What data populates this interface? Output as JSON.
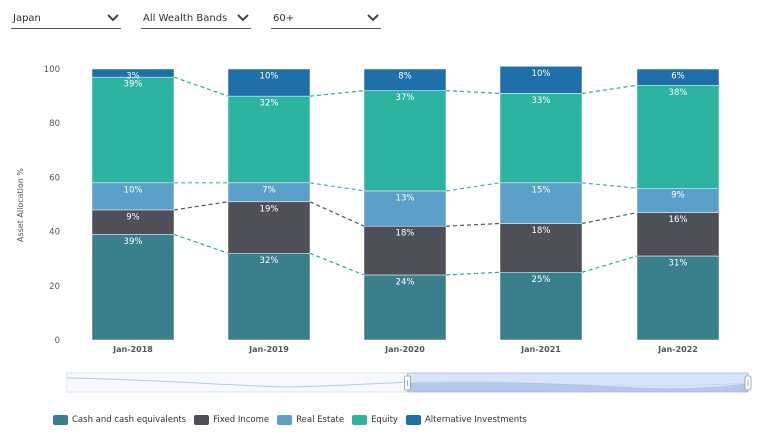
{
  "filters": {
    "country": {
      "value": "Japan",
      "icon": "chevron-down-icon"
    },
    "wealth_band": {
      "value": "All Wealth Bands",
      "icon": "chevron-down-icon"
    },
    "age": {
      "value": "60+",
      "icon": "chevron-down-icon"
    }
  },
  "chart_data": {
    "type": "bar",
    "stacked": true,
    "title": "",
    "xlabel": "",
    "ylabel": "Asset Allocation %",
    "ylim": [
      0,
      100
    ],
    "yticks": [
      0,
      20,
      40,
      60,
      80,
      100
    ],
    "grid": false,
    "legend_position": "bottom-left",
    "categories": [
      "Jan-2018",
      "Jan-2019",
      "Jan-2020",
      "Jan-2021",
      "Jan-2022"
    ],
    "series": [
      {
        "name": "Cash and cash equivalents",
        "color": "#3a7f8c",
        "values": [
          39,
          32,
          24,
          25,
          31
        ],
        "labels": [
          "39%",
          "32%",
          "24%",
          "25%",
          "31%"
        ],
        "connector_color": "#2fa8a8"
      },
      {
        "name": "Fixed Income",
        "color": "#4f4f57",
        "values": [
          9,
          19,
          18,
          18,
          16
        ],
        "labels": [
          "9%",
          "19%",
          "18%",
          "18%",
          "16%"
        ],
        "connector_color": "#555555"
      },
      {
        "name": "Real Estate",
        "color": "#5aa0c8",
        "values": [
          10,
          7,
          13,
          15,
          9
        ],
        "labels": [
          "10%",
          "7%",
          "13%",
          "15%",
          "9%"
        ],
        "connector_color": "#5aa0c8"
      },
      {
        "name": "Equity",
        "color": "#2db4a0",
        "values": [
          39,
          32,
          37,
          33,
          38
        ],
        "labels": [
          "39%",
          "32%",
          "37%",
          "33%",
          "38%"
        ],
        "connector_color": "#2fa8a8"
      },
      {
        "name": "Alternative Investments",
        "color": "#1f6fa8",
        "values": [
          3,
          10,
          8,
          10,
          6
        ],
        "labels": [
          "3%",
          "10%",
          "8%",
          "10%",
          "6%"
        ],
        "connector_color": "#2fa8a8"
      }
    ]
  },
  "navigator": {
    "range_start": 0.5,
    "range_end": 1.0
  }
}
